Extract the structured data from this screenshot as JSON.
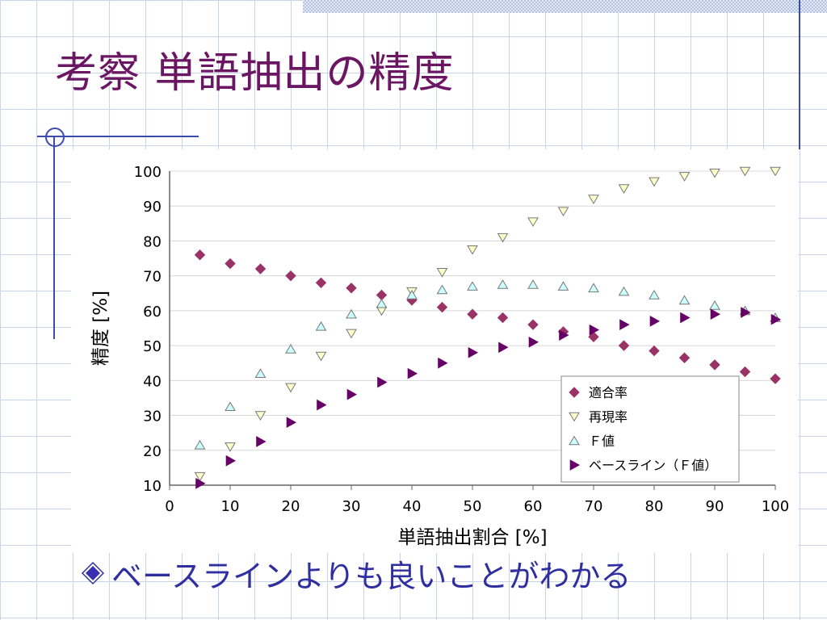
{
  "slide": {
    "title": "考察 単語抽出の精度",
    "bullet": "ベースラインよりも良いことがわかる"
  },
  "colors": {
    "title": "#6b1663",
    "bullet_text": "#2f2fa0",
    "grid_lines": "#c9d3ea",
    "rules": "#3b4bb0"
  },
  "chart_data": {
    "type": "scatter",
    "title": "",
    "xlabel": "単語抽出割合 [%]",
    "ylabel": "精度 [%]",
    "xlim": [
      0,
      100
    ],
    "ylim": [
      10,
      100
    ],
    "xticks": [
      "0",
      "10",
      "20",
      "30",
      "40",
      "50",
      "60",
      "70",
      "80",
      "90",
      "100"
    ],
    "yticks": [
      "10",
      "20",
      "30",
      "40",
      "50",
      "60",
      "70",
      "80",
      "90",
      "100"
    ],
    "grid": "horizontal",
    "legend_position": "bottom-right",
    "x": [
      5,
      10,
      15,
      20,
      25,
      30,
      35,
      40,
      45,
      50,
      55,
      60,
      65,
      70,
      75,
      80,
      85,
      90,
      95,
      100
    ],
    "series": [
      {
        "name": "適合率",
        "marker": "diamond",
        "color": "#993366",
        "values": [
          76,
          73.5,
          72,
          70,
          68,
          66.5,
          64.5,
          63,
          61,
          59,
          58,
          56,
          54,
          52.5,
          50,
          48.5,
          46.5,
          44.5,
          42.5,
          40.5
        ]
      },
      {
        "name": "再現率",
        "marker": "triangle-down",
        "color": "#ffffcc",
        "values": [
          12.5,
          21,
          30,
          38,
          47,
          53.5,
          60,
          65.5,
          71,
          77.5,
          81,
          85.5,
          88.5,
          92,
          95,
          97,
          98.5,
          99.5,
          100,
          100
        ]
      },
      {
        "name": "Ｆ値",
        "marker": "triangle-up",
        "color": "#ccffff",
        "values": [
          21.5,
          32.5,
          42,
          49,
          55.5,
          59,
          62,
          64.5,
          66,
          67,
          67.5,
          67.5,
          67,
          66.5,
          65.5,
          64.5,
          63,
          61.5,
          60,
          58
        ]
      },
      {
        "name": "ベースライン（Ｆ値）",
        "marker": "triangle-right",
        "color": "#660066",
        "values": [
          10.5,
          17,
          22.5,
          28,
          33,
          36,
          39.5,
          42,
          45,
          48,
          49.5,
          51,
          53,
          54.5,
          56,
          57,
          58,
          59,
          59.5,
          57.5
        ]
      }
    ]
  }
}
